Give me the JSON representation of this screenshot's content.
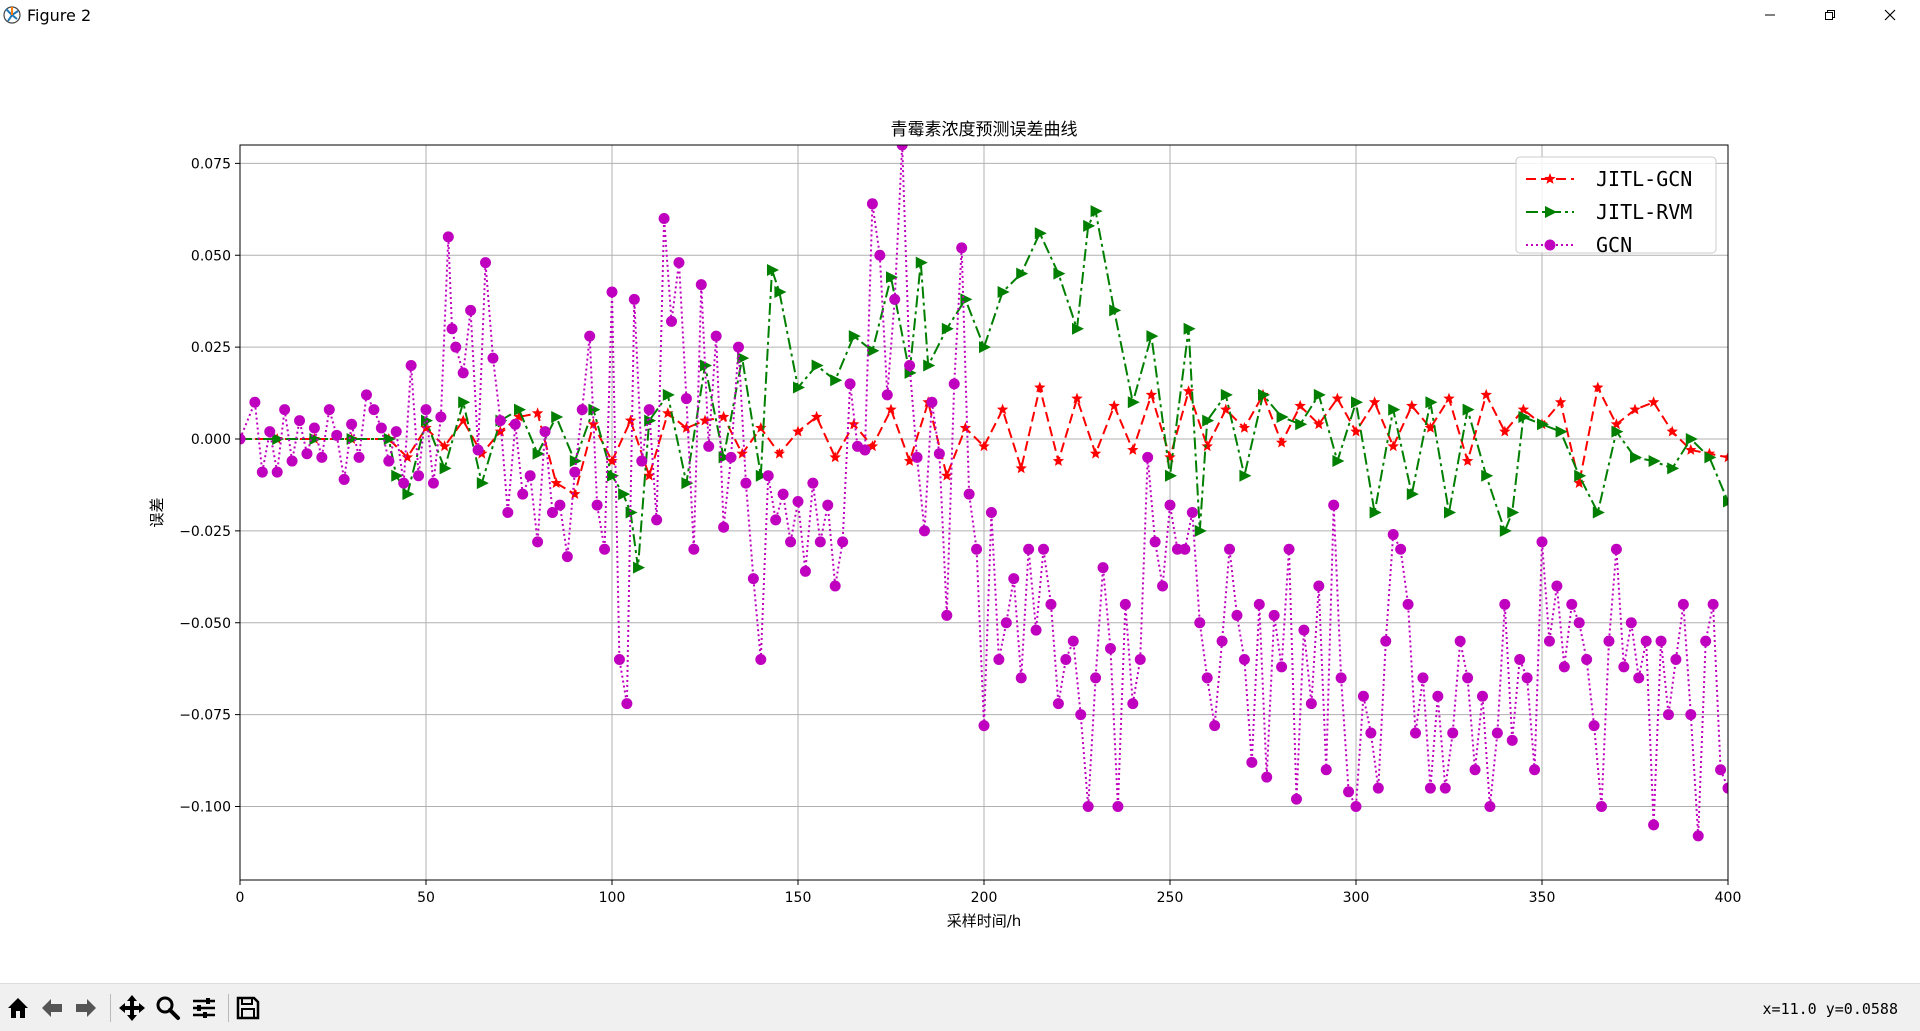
{
  "window": {
    "title": "Figure 2"
  },
  "icons": {
    "app": "matplotlib-icon",
    "minimize": "minimize-icon",
    "maximize": "restore-icon",
    "close": "close-icon"
  },
  "toolbar": {
    "buttons": [
      "home-icon",
      "back-icon",
      "forward-icon",
      "pan-icon",
      "zoom-icon",
      "configure-subplots-icon",
      "save-icon"
    ],
    "coordinates": "x=11.0 y=0.0588"
  },
  "chart_data": {
    "type": "line",
    "title": "青霉素浓度预测误差曲线",
    "xlabel": "采样时间/h",
    "ylabel": "误差",
    "xlim": [
      0,
      400
    ],
    "ylim": [
      -0.12,
      0.08
    ],
    "xticks": [
      "0",
      "50",
      "100",
      "150",
      "200",
      "250",
      "300",
      "350",
      "400"
    ],
    "yticks": [
      "0.075",
      "0.050",
      "0.025",
      "0.000",
      "−0.025",
      "−0.050",
      "−0.075",
      "−0.100"
    ],
    "grid": true,
    "legend_position": "top-right",
    "series": [
      {
        "name": "JITL-GCN",
        "color": "#ff0000",
        "linestyle": "dashed",
        "marker": "star",
        "x": [
          0,
          10,
          20,
          30,
          40,
          45,
          50,
          55,
          60,
          65,
          70,
          75,
          80,
          85,
          90,
          95,
          100,
          105,
          110,
          115,
          120,
          125,
          130,
          135,
          140,
          145,
          150,
          155,
          160,
          165,
          170,
          175,
          180,
          185,
          190,
          195,
          200,
          205,
          210,
          215,
          220,
          225,
          230,
          235,
          240,
          245,
          250,
          255,
          260,
          265,
          270,
          275,
          280,
          285,
          290,
          295,
          300,
          305,
          310,
          315,
          320,
          325,
          330,
          335,
          340,
          345,
          350,
          355,
          360,
          365,
          370,
          375,
          380,
          385,
          390,
          395,
          400
        ],
        "y": [
          0,
          0,
          0,
          0,
          0,
          -0.005,
          0.003,
          -0.002,
          0.005,
          -0.004,
          0.002,
          0.006,
          0.007,
          -0.012,
          -0.015,
          0.004,
          -0.006,
          0.005,
          -0.01,
          0.007,
          0.003,
          0.005,
          0.006,
          -0.004,
          0.003,
          -0.004,
          0.002,
          0.006,
          -0.005,
          0.004,
          -0.002,
          0.008,
          -0.006,
          0.01,
          -0.01,
          0.003,
          -0.002,
          0.008,
          -0.008,
          0.014,
          -0.006,
          0.011,
          -0.004,
          0.009,
          -0.003,
          0.012,
          -0.005,
          0.013,
          -0.002,
          0.008,
          0.003,
          0.012,
          -0.001,
          0.009,
          0.004,
          0.011,
          0.002,
          0.01,
          -0.002,
          0.009,
          0.003,
          0.011,
          -0.006,
          0.012,
          0.002,
          0.008,
          0.004,
          0.01,
          -0.012,
          0.014,
          0.004,
          0.008,
          0.01,
          0.002,
          -0.003,
          -0.004,
          -0.005
        ]
      },
      {
        "name": "JITL-RVM",
        "color": "#007f00",
        "linestyle": "dashdot",
        "marker": "triangle-right",
        "x": [
          0,
          10,
          20,
          30,
          40,
          42,
          45,
          50,
          55,
          60,
          65,
          70,
          75,
          80,
          85,
          90,
          95,
          100,
          103,
          105,
          107,
          110,
          115,
          120,
          125,
          130,
          135,
          140,
          143,
          145,
          150,
          155,
          160,
          165,
          170,
          175,
          180,
          183,
          185,
          190,
          195,
          200,
          205,
          210,
          215,
          220,
          225,
          228,
          230,
          235,
          240,
          245,
          250,
          255,
          258,
          260,
          265,
          270,
          275,
          280,
          285,
          290,
          295,
          300,
          305,
          310,
          315,
          320,
          325,
          330,
          335,
          340,
          342,
          345,
          350,
          355,
          360,
          365,
          370,
          375,
          380,
          385,
          390,
          395,
          400
        ],
        "y": [
          0,
          0,
          0,
          0,
          0,
          -0.01,
          -0.015,
          0.005,
          -0.008,
          0.01,
          -0.012,
          0.005,
          0.008,
          -0.004,
          0.006,
          -0.006,
          0.008,
          -0.01,
          -0.015,
          -0.02,
          -0.035,
          0.005,
          0.012,
          -0.012,
          0.02,
          -0.005,
          0.022,
          -0.01,
          0.046,
          0.04,
          0.014,
          0.02,
          0.016,
          0.028,
          0.024,
          0.044,
          0.018,
          0.048,
          0.02,
          0.03,
          0.038,
          0.025,
          0.04,
          0.045,
          0.056,
          0.045,
          0.03,
          0.058,
          0.062,
          0.035,
          0.01,
          0.028,
          -0.01,
          0.03,
          -0.025,
          0.005,
          0.012,
          -0.01,
          0.012,
          0.006,
          0.004,
          0.012,
          -0.006,
          0.01,
          -0.02,
          0.008,
          -0.015,
          0.01,
          -0.02,
          0.008,
          -0.01,
          -0.025,
          -0.02,
          0.006,
          0.004,
          0.002,
          -0.01,
          -0.02,
          0.002,
          -0.005,
          -0.006,
          -0.008,
          0.0,
          -0.005,
          -0.017
        ]
      },
      {
        "name": "GCN",
        "color": "#bf00bf",
        "linestyle": "dotted",
        "marker": "circle",
        "x": [
          0,
          4,
          6,
          8,
          10,
          12,
          14,
          16,
          18,
          20,
          22,
          24,
          26,
          28,
          30,
          32,
          34,
          36,
          38,
          40,
          42,
          44,
          46,
          48,
          50,
          52,
          54,
          56,
          57,
          58,
          60,
          62,
          64,
          66,
          68,
          70,
          72,
          74,
          76,
          78,
          80,
          82,
          84,
          86,
          88,
          90,
          92,
          94,
          96,
          98,
          100,
          102,
          104,
          106,
          108,
          110,
          112,
          114,
          116,
          118,
          120,
          122,
          124,
          126,
          128,
          130,
          132,
          134,
          136,
          138,
          140,
          142,
          144,
          146,
          148,
          150,
          152,
          154,
          156,
          158,
          160,
          162,
          164,
          166,
          168,
          170,
          172,
          174,
          176,
          178,
          180,
          182,
          184,
          186,
          188,
          190,
          192,
          194,
          196,
          198,
          200,
          202,
          204,
          206,
          208,
          210,
          212,
          214,
          216,
          218,
          220,
          222,
          224,
          226,
          228,
          230,
          232,
          234,
          236,
          238,
          240,
          242,
          244,
          246,
          248,
          250,
          252,
          254,
          256,
          258,
          260,
          262,
          264,
          266,
          268,
          270,
          272,
          274,
          276,
          278,
          280,
          282,
          284,
          286,
          288,
          290,
          292,
          294,
          296,
          298,
          300,
          302,
          304,
          306,
          308,
          310,
          312,
          314,
          316,
          318,
          320,
          322,
          324,
          326,
          328,
          330,
          332,
          334,
          336,
          338,
          340,
          342,
          344,
          346,
          348,
          350,
          352,
          354,
          356,
          358,
          360,
          362,
          364,
          366,
          368,
          370,
          372,
          374,
          376,
          378,
          380,
          382,
          384,
          386,
          388,
          390,
          392,
          394,
          396,
          398,
          400
        ],
        "y": [
          0,
          0.01,
          -0.009,
          0.002,
          -0.009,
          0.008,
          -0.006,
          0.005,
          -0.004,
          0.003,
          -0.005,
          0.008,
          0.001,
          -0.011,
          0.004,
          -0.005,
          0.012,
          0.008,
          0.003,
          -0.006,
          0.002,
          -0.012,
          0.02,
          -0.01,
          0.008,
          -0.012,
          0.006,
          0.055,
          0.03,
          0.025,
          0.018,
          0.035,
          -0.003,
          0.048,
          0.022,
          0.005,
          -0.02,
          0.004,
          -0.015,
          -0.01,
          -0.028,
          0.002,
          -0.02,
          -0.018,
          -0.032,
          -0.009,
          0.008,
          0.028,
          -0.018,
          -0.03,
          0.04,
          -0.06,
          -0.072,
          0.038,
          -0.006,
          0.008,
          -0.022,
          0.06,
          0.032,
          0.048,
          0.011,
          -0.03,
          0.042,
          -0.002,
          0.028,
          -0.024,
          -0.005,
          0.025,
          -0.012,
          -0.038,
          -0.06,
          -0.01,
          -0.022,
          -0.015,
          -0.028,
          -0.017,
          -0.036,
          -0.012,
          -0.028,
          -0.018,
          -0.04,
          -0.028,
          0.015,
          -0.002,
          -0.003,
          0.064,
          0.05,
          0.012,
          0.038,
          0.08,
          0.02,
          -0.005,
          -0.025,
          0.01,
          -0.004,
          -0.048,
          0.015,
          0.052,
          -0.015,
          -0.03,
          -0.078,
          -0.02,
          -0.06,
          -0.05,
          -0.038,
          -0.065,
          -0.03,
          -0.052,
          -0.03,
          -0.045,
          -0.072,
          -0.06,
          -0.055,
          -0.075,
          -0.1,
          -0.065,
          -0.035,
          -0.057,
          -0.1,
          -0.045,
          -0.072,
          -0.06,
          -0.005,
          -0.028,
          -0.04,
          -0.018,
          -0.03,
          -0.03,
          -0.02,
          -0.05,
          -0.065,
          -0.078,
          -0.055,
          -0.03,
          -0.048,
          -0.06,
          -0.088,
          -0.045,
          -0.092,
          -0.048,
          -0.062,
          -0.03,
          -0.098,
          -0.052,
          -0.072,
          -0.04,
          -0.09,
          -0.018,
          -0.065,
          -0.096,
          -0.1,
          -0.07,
          -0.08,
          -0.095,
          -0.055,
          -0.026,
          -0.03,
          -0.045,
          -0.08,
          -0.065,
          -0.095,
          -0.07,
          -0.095,
          -0.08,
          -0.055,
          -0.065,
          -0.09,
          -0.07,
          -0.1,
          -0.08,
          -0.045,
          -0.082,
          -0.06,
          -0.065,
          -0.09,
          -0.028,
          -0.055,
          -0.04,
          -0.062,
          -0.045,
          -0.05,
          -0.06,
          -0.078,
          -0.1,
          -0.055,
          -0.03,
          -0.062,
          -0.05,
          -0.065,
          -0.055,
          -0.105,
          -0.055,
          -0.075,
          -0.06,
          -0.045,
          -0.075,
          -0.108,
          -0.055,
          -0.045,
          -0.09,
          -0.095
        ]
      }
    ]
  }
}
